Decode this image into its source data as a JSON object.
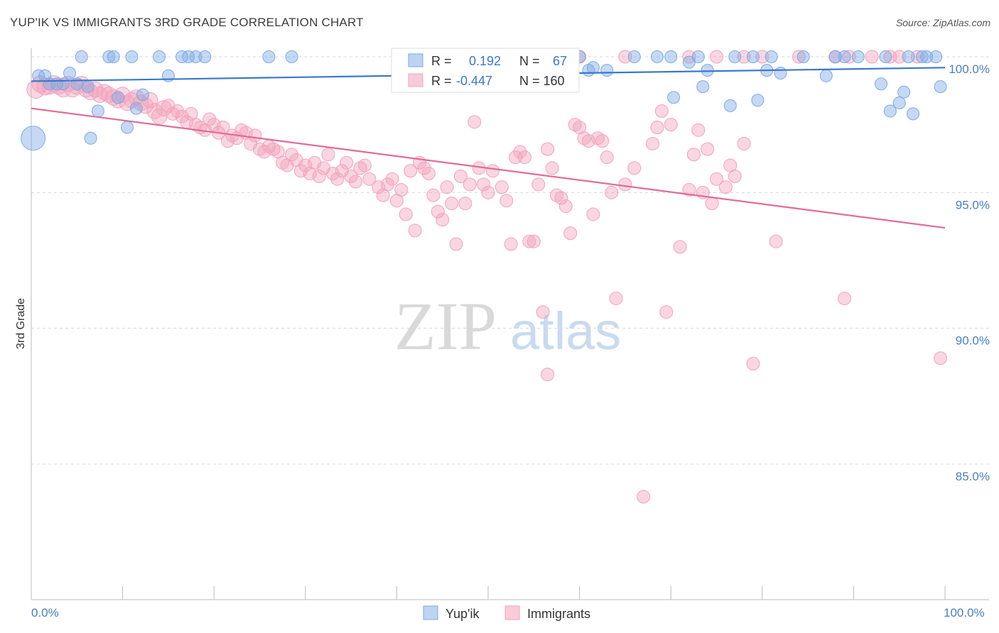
{
  "header": {
    "title": "YUP'IK VS IMMIGRANTS 3RD GRADE CORRELATION CHART",
    "source": "Source: ZipAtlas.com"
  },
  "watermark": {
    "zip": "ZIP",
    "atlas": "atlas"
  },
  "legend_box": {
    "rows": [
      {
        "r_label": "R =",
        "r_value": "0.192",
        "n_label": "N =",
        "n_value": "67",
        "color": "#7eaae6"
      },
      {
        "r_label": "R =",
        "r_value": "-0.447",
        "n_label": "N = 160",
        "n_value": "",
        "color": "#f2a3bd"
      }
    ]
  },
  "bottom_legend": {
    "series_a": "Yup'ik",
    "series_b": "Immigrants"
  },
  "chart_data": {
    "type": "scatter",
    "title": "YUP'IK VS IMMIGRANTS 3RD GRADE CORRELATION CHART",
    "xlabel": "",
    "ylabel": "3rd Grade",
    "xlim": [
      0,
      100
    ],
    "ylim": [
      80.0,
      100.5
    ],
    "x_tick_labels": [
      "0.0%",
      "100.0%"
    ],
    "y_ticks": [
      85.0,
      90.0,
      95.0,
      100.0
    ],
    "y_tick_labels": [
      "85.0%",
      "90.0%",
      "95.0%",
      "100.0%"
    ],
    "grid": true,
    "legend_position": "top-center",
    "colors": {
      "yupik": "#7eaae6",
      "yupik_line": "#3a78cc",
      "immigrants": "#f2a3bd",
      "immigrants_line": "#e26b98",
      "axis_text": "#4a7fc1"
    },
    "series": [
      {
        "name": "Yup'ik",
        "r": 0.192,
        "n": 67,
        "trend": {
          "x": [
            0,
            100
          ],
          "y": [
            99.1,
            99.6
          ]
        },
        "points": [
          {
            "x": 0.2,
            "y": 97.0,
            "s": 2
          },
          {
            "x": 0.8,
            "y": 99.3
          },
          {
            "x": 1.5,
            "y": 99.3
          },
          {
            "x": 2.0,
            "y": 99.0
          },
          {
            "x": 2.8,
            "y": 99.0
          },
          {
            "x": 3.5,
            "y": 99.0
          },
          {
            "x": 4.2,
            "y": 99.4
          },
          {
            "x": 5.0,
            "y": 99.0
          },
          {
            "x": 6.2,
            "y": 98.9
          },
          {
            "x": 5.5,
            "y": 100.0
          },
          {
            "x": 7.3,
            "y": 98.0
          },
          {
            "x": 8.5,
            "y": 100.0
          },
          {
            "x": 9.0,
            "y": 100.0
          },
          {
            "x": 6.5,
            "y": 97.0
          },
          {
            "x": 9.5,
            "y": 98.5
          },
          {
            "x": 10.5,
            "y": 97.4
          },
          {
            "x": 11.0,
            "y": 100.0
          },
          {
            "x": 11.5,
            "y": 98.1
          },
          {
            "x": 12.2,
            "y": 98.6
          },
          {
            "x": 14.0,
            "y": 100.0
          },
          {
            "x": 15.0,
            "y": 99.3
          },
          {
            "x": 16.5,
            "y": 100.0
          },
          {
            "x": 17.2,
            "y": 100.0
          },
          {
            "x": 18.0,
            "y": 100.0
          },
          {
            "x": 19.0,
            "y": 100.0
          },
          {
            "x": 26.0,
            "y": 100.0
          },
          {
            "x": 28.5,
            "y": 100.0
          },
          {
            "x": 41.0,
            "y": 100.0
          },
          {
            "x": 43.5,
            "y": 100.0
          },
          {
            "x": 45.0,
            "y": 100.0
          },
          {
            "x": 50.5,
            "y": 100.0
          },
          {
            "x": 58.0,
            "y": 100.0
          },
          {
            "x": 60.0,
            "y": 100.0
          },
          {
            "x": 61.0,
            "y": 99.5
          },
          {
            "x": 61.5,
            "y": 99.6
          },
          {
            "x": 63.0,
            "y": 99.5
          },
          {
            "x": 66.0,
            "y": 100.0
          },
          {
            "x": 68.5,
            "y": 100.0
          },
          {
            "x": 70.0,
            "y": 100.0
          },
          {
            "x": 70.3,
            "y": 98.5
          },
          {
            "x": 72.0,
            "y": 99.8
          },
          {
            "x": 73.0,
            "y": 100.0
          },
          {
            "x": 73.5,
            "y": 98.9
          },
          {
            "x": 74.0,
            "y": 99.5
          },
          {
            "x": 76.5,
            "y": 98.2
          },
          {
            "x": 77.0,
            "y": 100.0
          },
          {
            "x": 79.0,
            "y": 100.0
          },
          {
            "x": 79.5,
            "y": 98.4
          },
          {
            "x": 80.5,
            "y": 99.5
          },
          {
            "x": 81.0,
            "y": 100.0
          },
          {
            "x": 82.0,
            "y": 99.4
          },
          {
            "x": 84.5,
            "y": 100.0
          },
          {
            "x": 87.0,
            "y": 99.3
          },
          {
            "x": 88.0,
            "y": 100.0
          },
          {
            "x": 89.0,
            "y": 100.0
          },
          {
            "x": 90.5,
            "y": 100.0
          },
          {
            "x": 93.0,
            "y": 99.0
          },
          {
            "x": 93.5,
            "y": 100.0
          },
          {
            "x": 94.0,
            "y": 98.0
          },
          {
            "x": 95.0,
            "y": 98.3
          },
          {
            "x": 95.5,
            "y": 98.7
          },
          {
            "x": 96.0,
            "y": 100.0
          },
          {
            "x": 96.5,
            "y": 97.9
          },
          {
            "x": 97.5,
            "y": 100.0
          },
          {
            "x": 98.0,
            "y": 100.0
          },
          {
            "x": 99.0,
            "y": 100.0
          },
          {
            "x": 99.5,
            "y": 98.9
          }
        ]
      },
      {
        "name": "Immigrants",
        "r": -0.447,
        "n": 160,
        "trend": {
          "x": [
            0,
            100
          ],
          "y": [
            98.1,
            93.7
          ]
        },
        "points": [
          {
            "x": 0.5,
            "y": 98.8,
            "s": 1.4
          },
          {
            "x": 1.0,
            "y": 99.0,
            "s": 1.3
          },
          {
            "x": 1.5,
            "y": 98.9,
            "s": 1.3
          },
          {
            "x": 2.0,
            "y": 98.9,
            "s": 1.2
          },
          {
            "x": 2.5,
            "y": 99.0,
            "s": 1.3
          },
          {
            "x": 3.0,
            "y": 98.9,
            "s": 1.2
          },
          {
            "x": 3.5,
            "y": 98.8,
            "s": 1.2
          },
          {
            "x": 4.0,
            "y": 99.0,
            "s": 1.2
          },
          {
            "x": 4.5,
            "y": 98.8,
            "s": 1.2
          },
          {
            "x": 5.0,
            "y": 98.9,
            "s": 1.2
          },
          {
            "x": 5.5,
            "y": 99.0,
            "s": 1.2
          },
          {
            "x": 6.0,
            "y": 98.8,
            "s": 1.2
          },
          {
            "x": 6.5,
            "y": 98.7,
            "s": 1.2
          },
          {
            "x": 7.0,
            "y": 98.8,
            "s": 1.2
          },
          {
            "x": 7.5,
            "y": 98.6,
            "s": 1.2
          },
          {
            "x": 8.0,
            "y": 98.7,
            "s": 1.2
          },
          {
            "x": 8.5,
            "y": 98.6,
            "s": 1.2
          },
          {
            "x": 9.0,
            "y": 98.5,
            "s": 1.2
          },
          {
            "x": 9.5,
            "y": 98.4,
            "s": 1.2
          },
          {
            "x": 10.0,
            "y": 98.6,
            "s": 1.2
          },
          {
            "x": 10.5,
            "y": 98.3,
            "s": 1.2
          },
          {
            "x": 11.0,
            "y": 98.4,
            "s": 1.2
          },
          {
            "x": 11.5,
            "y": 98.5,
            "s": 1.2
          },
          {
            "x": 12.0,
            "y": 98.3,
            "s": 1.2
          },
          {
            "x": 12.5,
            "y": 98.2,
            "s": 1.2
          },
          {
            "x": 13.0,
            "y": 98.4,
            "s": 1.2
          },
          {
            "x": 13.5,
            "y": 98.0,
            "s": 1.2
          },
          {
            "x": 14.0,
            "y": 97.8,
            "s": 1.2
          },
          {
            "x": 14.5,
            "y": 98.1,
            "s": 1.2
          },
          {
            "x": 15.0,
            "y": 98.2
          },
          {
            "x": 15.5,
            "y": 97.9
          },
          {
            "x": 16.0,
            "y": 98.0
          },
          {
            "x": 16.5,
            "y": 97.8
          },
          {
            "x": 17.0,
            "y": 97.6
          },
          {
            "x": 17.5,
            "y": 97.9
          },
          {
            "x": 18.0,
            "y": 97.5
          },
          {
            "x": 18.5,
            "y": 97.4
          },
          {
            "x": 19.0,
            "y": 97.3
          },
          {
            "x": 19.5,
            "y": 97.7
          },
          {
            "x": 20.0,
            "y": 97.5
          },
          {
            "x": 20.5,
            "y": 97.2
          },
          {
            "x": 21.0,
            "y": 97.4
          },
          {
            "x": 21.5,
            "y": 96.9
          },
          {
            "x": 22.0,
            "y": 97.1
          },
          {
            "x": 22.5,
            "y": 97.0
          },
          {
            "x": 23.0,
            "y": 97.3
          },
          {
            "x": 23.5,
            "y": 97.2
          },
          {
            "x": 24.0,
            "y": 96.8
          },
          {
            "x": 24.5,
            "y": 97.1
          },
          {
            "x": 25.0,
            "y": 96.6
          },
          {
            "x": 25.5,
            "y": 96.5
          },
          {
            "x": 26.0,
            "y": 96.7
          },
          {
            "x": 26.5,
            "y": 96.6
          },
          {
            "x": 27.0,
            "y": 96.5
          },
          {
            "x": 27.5,
            "y": 96.1
          },
          {
            "x": 28.0,
            "y": 96.0
          },
          {
            "x": 28.5,
            "y": 96.4
          },
          {
            "x": 29.0,
            "y": 96.2
          },
          {
            "x": 29.5,
            "y": 95.8
          },
          {
            "x": 30.0,
            "y": 96.0
          },
          {
            "x": 30.5,
            "y": 95.7
          },
          {
            "x": 31.0,
            "y": 96.1
          },
          {
            "x": 31.5,
            "y": 95.6
          },
          {
            "x": 32.0,
            "y": 95.9
          },
          {
            "x": 32.5,
            "y": 96.4
          },
          {
            "x": 33.0,
            "y": 95.7
          },
          {
            "x": 33.5,
            "y": 95.5
          },
          {
            "x": 34.0,
            "y": 95.8
          },
          {
            "x": 34.5,
            "y": 96.1
          },
          {
            "x": 35.0,
            "y": 95.6
          },
          {
            "x": 35.5,
            "y": 95.4
          },
          {
            "x": 36.0,
            "y": 95.9
          },
          {
            "x": 36.5,
            "y": 96.0
          },
          {
            "x": 37.0,
            "y": 95.5
          },
          {
            "x": 38.0,
            "y": 95.2
          },
          {
            "x": 38.5,
            "y": 94.9
          },
          {
            "x": 39.0,
            "y": 95.3
          },
          {
            "x": 39.5,
            "y": 95.5
          },
          {
            "x": 40.0,
            "y": 94.7
          },
          {
            "x": 40.5,
            "y": 95.1
          },
          {
            "x": 41.0,
            "y": 94.2
          },
          {
            "x": 41.5,
            "y": 95.8
          },
          {
            "x": 42.0,
            "y": 93.6
          },
          {
            "x": 42.5,
            "y": 96.1
          },
          {
            "x": 43.0,
            "y": 95.9
          },
          {
            "x": 43.5,
            "y": 95.7
          },
          {
            "x": 44.0,
            "y": 94.9
          },
          {
            "x": 44.5,
            "y": 94.3
          },
          {
            "x": 45.0,
            "y": 94.0
          },
          {
            "x": 45.5,
            "y": 95.2
          },
          {
            "x": 46.0,
            "y": 94.6
          },
          {
            "x": 46.5,
            "y": 93.1
          },
          {
            "x": 47.0,
            "y": 95.6
          },
          {
            "x": 47.5,
            "y": 94.6
          },
          {
            "x": 48.0,
            "y": 95.3
          },
          {
            "x": 48.5,
            "y": 97.6
          },
          {
            "x": 49.0,
            "y": 95.9
          },
          {
            "x": 49.5,
            "y": 95.3
          },
          {
            "x": 50.0,
            "y": 95.0
          },
          {
            "x": 50.5,
            "y": 95.8
          },
          {
            "x": 51.5,
            "y": 95.2
          },
          {
            "x": 52.0,
            "y": 94.7
          },
          {
            "x": 52.5,
            "y": 93.1
          },
          {
            "x": 53.0,
            "y": 96.3
          },
          {
            "x": 53.5,
            "y": 96.5
          },
          {
            "x": 54.0,
            "y": 96.3
          },
          {
            "x": 54.5,
            "y": 93.2
          },
          {
            "x": 55.0,
            "y": 93.2
          },
          {
            "x": 55.5,
            "y": 95.3
          },
          {
            "x": 56.0,
            "y": 90.6
          },
          {
            "x": 56.5,
            "y": 96.6
          },
          {
            "x": 57.0,
            "y": 95.9
          },
          {
            "x": 57.5,
            "y": 94.9
          },
          {
            "x": 58.0,
            "y": 94.8
          },
          {
            "x": 58.5,
            "y": 94.5
          },
          {
            "x": 59.0,
            "y": 93.5
          },
          {
            "x": 59.5,
            "y": 97.5
          },
          {
            "x": 60.0,
            "y": 97.4
          },
          {
            "x": 60.5,
            "y": 97.0
          },
          {
            "x": 61.0,
            "y": 96.9
          },
          {
            "x": 61.5,
            "y": 94.2
          },
          {
            "x": 62.0,
            "y": 97.0
          },
          {
            "x": 62.5,
            "y": 96.9
          },
          {
            "x": 63.0,
            "y": 96.3
          },
          {
            "x": 63.5,
            "y": 95.0
          },
          {
            "x": 64.0,
            "y": 91.1
          },
          {
            "x": 65.0,
            "y": 95.3
          },
          {
            "x": 66.0,
            "y": 95.9
          },
          {
            "x": 67.0,
            "y": 83.8
          },
          {
            "x": 68.0,
            "y": 96.8
          },
          {
            "x": 68.5,
            "y": 97.4
          },
          {
            "x": 69.0,
            "y": 98.0
          },
          {
            "x": 69.5,
            "y": 90.6
          },
          {
            "x": 70.0,
            "y": 97.5
          },
          {
            "x": 71.0,
            "y": 93.0
          },
          {
            "x": 72.0,
            "y": 95.1
          },
          {
            "x": 72.5,
            "y": 96.4
          },
          {
            "x": 73.0,
            "y": 97.3
          },
          {
            "x": 73.5,
            "y": 95.0
          },
          {
            "x": 74.0,
            "y": 96.6
          },
          {
            "x": 74.5,
            "y": 94.6
          },
          {
            "x": 75.0,
            "y": 95.5
          },
          {
            "x": 76.0,
            "y": 95.2
          },
          {
            "x": 76.5,
            "y": 96.0
          },
          {
            "x": 77.0,
            "y": 95.6
          },
          {
            "x": 78.0,
            "y": 96.8
          },
          {
            "x": 79.0,
            "y": 88.7
          },
          {
            "x": 80.0,
            "y": 100.0
          },
          {
            "x": 81.5,
            "y": 93.2
          },
          {
            "x": 84.0,
            "y": 100.0
          },
          {
            "x": 88.0,
            "y": 100.0
          },
          {
            "x": 89.0,
            "y": 91.1
          },
          {
            "x": 89.5,
            "y": 100.0
          },
          {
            "x": 92.0,
            "y": 100.0
          },
          {
            "x": 94.0,
            "y": 100.0
          },
          {
            "x": 95.0,
            "y": 100.0
          },
          {
            "x": 97.0,
            "y": 100.0
          },
          {
            "x": 99.5,
            "y": 88.9
          },
          {
            "x": 56.5,
            "y": 88.3
          },
          {
            "x": 60.0,
            "y": 100.0
          },
          {
            "x": 65.0,
            "y": 100.0
          },
          {
            "x": 72.0,
            "y": 100.0
          },
          {
            "x": 75.0,
            "y": 100.0
          },
          {
            "x": 78.0,
            "y": 100.0
          }
        ]
      }
    ]
  }
}
